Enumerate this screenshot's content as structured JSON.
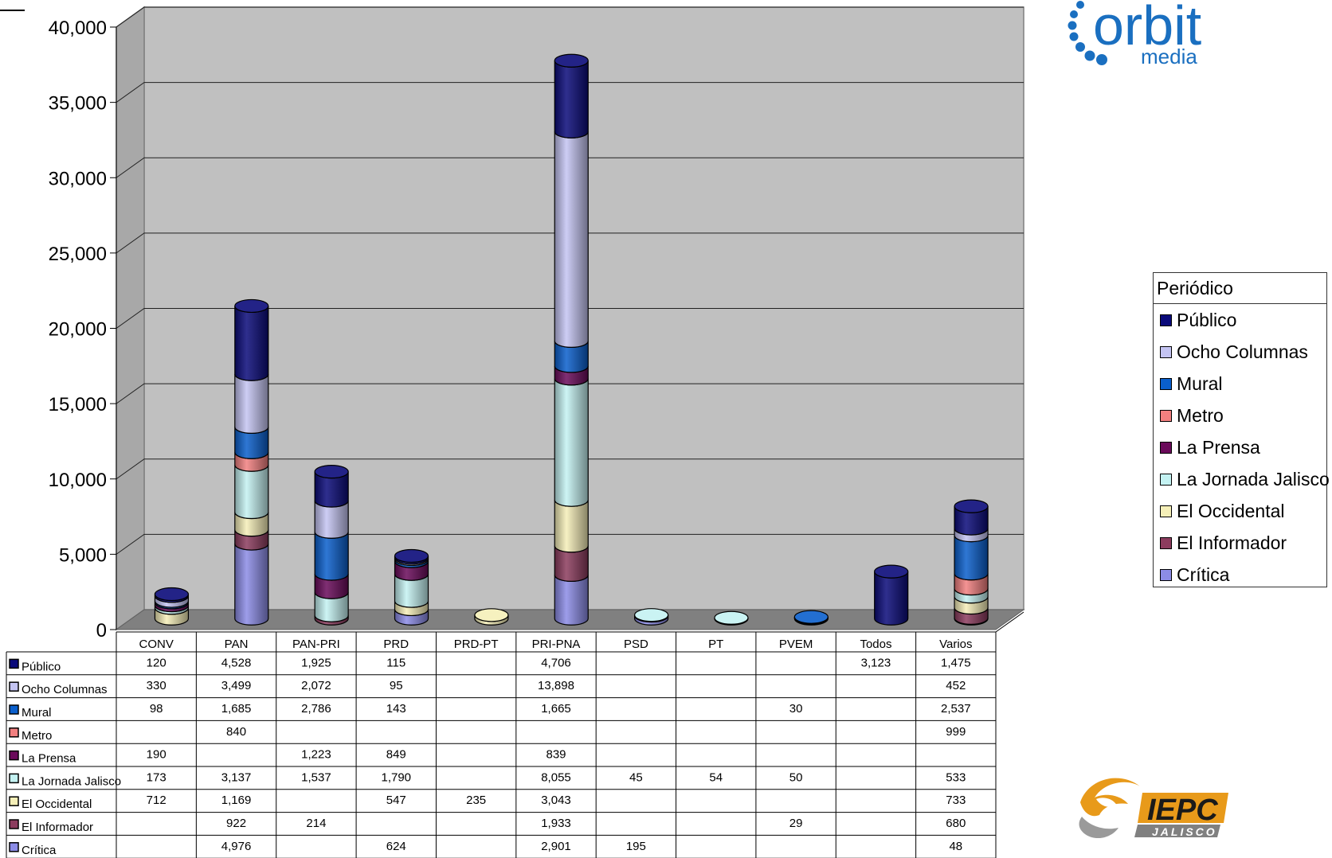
{
  "chart_data": {
    "type": "bar",
    "stacked": true,
    "categories": [
      "CONV",
      "PAN",
      "PAN-PRI",
      "PRD",
      "PRD-PT",
      "PRI-PNA",
      "PSD",
      "PT",
      "PVEM",
      "Todos",
      "Varios"
    ],
    "y_ticks": [
      "0",
      "5,000",
      "10,000",
      "15,000",
      "20,000",
      "25,000",
      "30,000",
      "35,000",
      "40,000"
    ],
    "ylim": [
      0,
      40000
    ],
    "grid": true,
    "legend_title": "Periódico",
    "legend_position": "right",
    "series": [
      {
        "name": "Crítica",
        "color": "#8c8ce6",
        "values": [
          null,
          4976,
          null,
          624,
          null,
          2901,
          195,
          null,
          null,
          null,
          48
        ],
        "labels": [
          "",
          "4,976",
          "",
          "624",
          "",
          "2,901",
          "195",
          "",
          "",
          "",
          "48"
        ]
      },
      {
        "name": "El Informador",
        "color": "#8c3c5e",
        "values": [
          null,
          922,
          214,
          null,
          null,
          1933,
          null,
          null,
          29,
          null,
          680
        ],
        "labels": [
          "",
          "922",
          "214",
          "",
          "",
          "1,933",
          "",
          "",
          "29",
          "",
          "680"
        ]
      },
      {
        "name": "El Occidental",
        "color": "#f5efb8",
        "values": [
          712,
          1169,
          null,
          547,
          235,
          3043,
          null,
          null,
          null,
          null,
          733
        ],
        "labels": [
          "712",
          "1,169",
          "",
          "547",
          "235",
          "3,043",
          "",
          "",
          "",
          "",
          "733"
        ]
      },
      {
        "name": "La Jornada Jalisco",
        "color": "#c4f2f2",
        "values": [
          173,
          3137,
          1537,
          1790,
          null,
          8055,
          45,
          54,
          50,
          null,
          533
        ],
        "labels": [
          "173",
          "3,137",
          "1,537",
          "1,790",
          "",
          "8,055",
          "45",
          "54",
          "50",
          "",
          "533"
        ]
      },
      {
        "name": "La Prensa",
        "color": "#6a0a5a",
        "values": [
          190,
          null,
          1223,
          849,
          null,
          839,
          null,
          null,
          null,
          null,
          null
        ],
        "labels": [
          "190",
          "",
          "1,223",
          "849",
          "",
          "839",
          "",
          "",
          "",
          "",
          ""
        ]
      },
      {
        "name": "Metro",
        "color": "#f28080",
        "values": [
          null,
          840,
          null,
          null,
          null,
          null,
          null,
          null,
          null,
          null,
          999
        ],
        "labels": [
          "",
          "840",
          "",
          "",
          "",
          "",
          "",
          "",
          "",
          "",
          "999"
        ]
      },
      {
        "name": "Mural",
        "color": "#0a5fcc",
        "values": [
          98,
          1685,
          2786,
          143,
          null,
          1665,
          null,
          null,
          30,
          null,
          2537
        ],
        "labels": [
          "98",
          "1,685",
          "2,786",
          "143",
          "",
          "1,665",
          "",
          "",
          "30",
          "",
          "2,537"
        ]
      },
      {
        "name": "Ocho Columnas",
        "color": "#c4c4f2",
        "values": [
          330,
          3499,
          2072,
          95,
          null,
          13898,
          null,
          null,
          null,
          null,
          452
        ],
        "labels": [
          "330",
          "3,499",
          "2,072",
          "95",
          "",
          "13,898",
          "",
          "",
          "",
          "",
          "452"
        ]
      },
      {
        "name": "Público",
        "color": "#0a0a7a",
        "values": [
          120,
          4528,
          1925,
          115,
          null,
          4706,
          null,
          null,
          null,
          3123,
          1475
        ],
        "labels": [
          "120",
          "4,528",
          "1,925",
          "115",
          "",
          "4,706",
          "",
          "",
          "",
          "3,123",
          "1,475"
        ]
      }
    ]
  },
  "logos": {
    "orbit": {
      "text": "orbit",
      "subtext": "media",
      "color": "#1a6fc0"
    },
    "iepc": {
      "text": "IEPC",
      "subtext": "JALISCO",
      "color": "#e89a1a"
    }
  }
}
